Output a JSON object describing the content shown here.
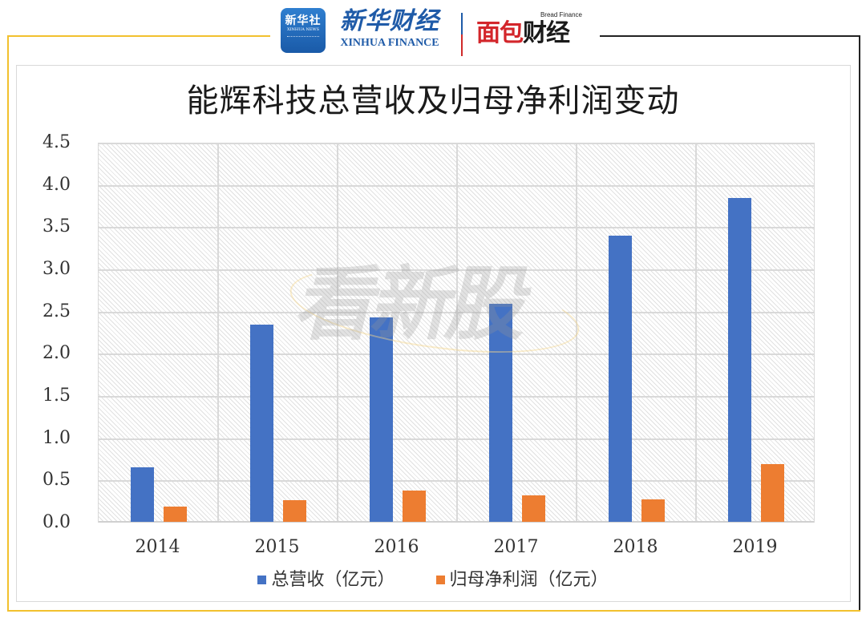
{
  "header": {
    "logo_xinhua_app": {
      "cn": "新华社",
      "en": "XINHUA NEWS"
    },
    "logo_xinhua_finance": {
      "cn": "新华财经",
      "en": "XINHUA FINANCE"
    },
    "logo_bread_finance": {
      "en": "Bread Finance",
      "cn_red": "面包",
      "cn_black": "财经"
    }
  },
  "watermark": "看新股",
  "colors": {
    "series_revenue": "#4472c4",
    "series_net_profit": "#ed7d31",
    "frame_yellow": "#f2c12e",
    "frame_black": "#222222",
    "grid": "#d9d9d9"
  },
  "chart_data": {
    "type": "bar",
    "title": "能辉科技总营收及归母净利润变动",
    "xlabel": "",
    "ylabel": "",
    "categories": [
      "2014",
      "2015",
      "2016",
      "2017",
      "2018",
      "2019"
    ],
    "series": [
      {
        "name": "总营收（亿元）",
        "color": "#4472c4",
        "values": [
          0.65,
          2.34,
          2.42,
          2.58,
          3.39,
          3.84
        ]
      },
      {
        "name": "归母净利润（亿元）",
        "color": "#ed7d31",
        "values": [
          0.18,
          0.26,
          0.37,
          0.31,
          0.27,
          0.68
        ]
      }
    ],
    "ylim": [
      0,
      4.5
    ],
    "yticks": [
      "0.0",
      "0.5",
      "1.0",
      "1.5",
      "2.0",
      "2.5",
      "3.0",
      "3.5",
      "4.0",
      "4.5"
    ],
    "grid": true,
    "legend_position": "bottom"
  }
}
